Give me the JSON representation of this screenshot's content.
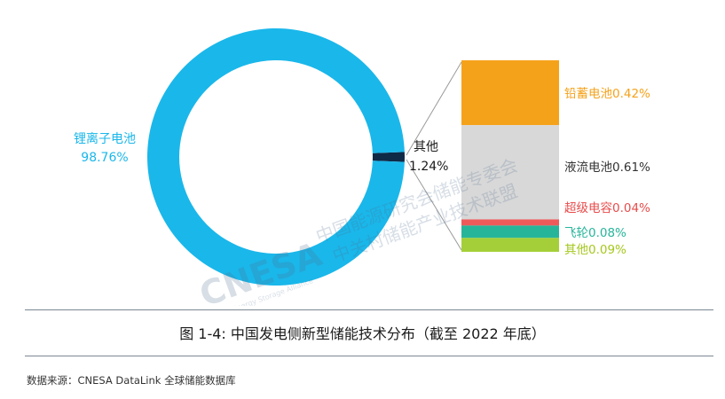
{
  "chart_data": [
    {
      "type": "pie",
      "style": "donut",
      "categories": [
        "锂离子电池",
        "其他"
      ],
      "values": [
        98.76,
        1.24
      ],
      "labels": [
        {
          "name": "锂离子电池",
          "value": "98.76%"
        },
        {
          "name": "其他",
          "value": "1.24%"
        }
      ],
      "colors": [
        "#1ab7ea",
        "#0e2a47"
      ]
    },
    {
      "type": "bar",
      "style": "stacked-breakdown",
      "categories": [
        "铅蓄电池",
        "液流电池",
        "超级电容",
        "飞轮",
        "其他"
      ],
      "values": [
        0.42,
        0.61,
        0.04,
        0.08,
        0.09
      ],
      "labels": [
        "铅蓄电池0.42%",
        "液流电池0.61%",
        "超级电容0.04%",
        "飞轮0.08%",
        "其他0.09%"
      ],
      "colors": [
        "#f5a21b",
        "#d8d8d8",
        "#ee5a5a",
        "#27b59a",
        "#a5cf38"
      ],
      "label_colors": [
        "#f5a21b",
        "#333333",
        "#e84c4c",
        "#27b59a",
        "#a5c81e"
      ]
    }
  ],
  "watermark": {
    "logo_text": "CNESA",
    "logo_sub": "China Energy Storage Alliance",
    "line1": "中国能源研究会储能专委会",
    "line2": "中关村储能产业技术联盟"
  },
  "caption": "图 1-4: 中国发电侧新型储能技术分布（截至 2022 年底）",
  "source": "数据来源：CNESA DataLink 全球储能数据库"
}
